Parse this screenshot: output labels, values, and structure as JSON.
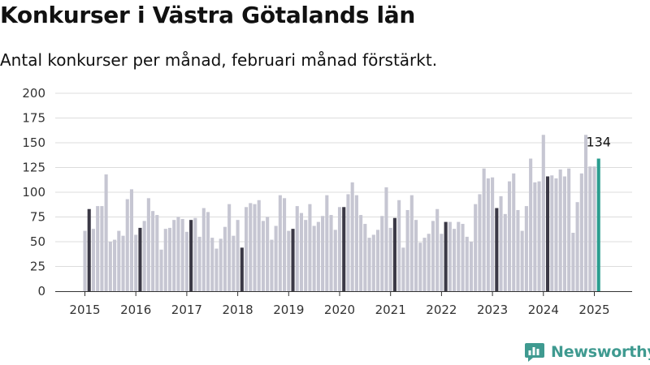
{
  "title": "Konkurser i Västra Götalands län",
  "subtitle": "Antal konkurser per månad, februari månad förstärkt.",
  "brand": {
    "name": "Newsworthy",
    "icon": "newsworthy-logo-icon",
    "color": "#3f9a90"
  },
  "chart_data": {
    "type": "bar",
    "title": "Konkurser i Västra Götalands län",
    "subtitle": "Antal konkurser per månad, februari månad förstärkt.",
    "xlabel": "",
    "ylabel": "",
    "ylim": [
      0,
      200
    ],
    "y_ticks": [
      0,
      25,
      50,
      75,
      100,
      125,
      150,
      175,
      200
    ],
    "x_tick_labels": [
      "2015",
      "2016",
      "2017",
      "2018",
      "2019",
      "2020",
      "2021",
      "2022",
      "2023",
      "2024",
      "2025"
    ],
    "grid": "horizontal",
    "start": "2015-01",
    "end": "2025-02",
    "highlight": "February of each year",
    "annotation": {
      "month": "2025-02",
      "label": "134"
    },
    "colors": {
      "default": "#c6c6d2",
      "february": "#3b3946",
      "latest": "#2a9d8f"
    },
    "values": [
      61,
      83,
      63,
      86,
      86,
      118,
      50,
      52,
      61,
      56,
      93,
      103,
      57,
      64,
      71,
      94,
      81,
      77,
      42,
      63,
      64,
      72,
      75,
      73,
      60,
      72,
      74,
      55,
      84,
      80,
      54,
      43,
      53,
      65,
      88,
      56,
      72,
      44,
      85,
      89,
      88,
      92,
      71,
      75,
      52,
      66,
      97,
      94,
      61,
      63,
      86,
      79,
      72,
      88,
      66,
      70,
      76,
      97,
      77,
      62,
      85,
      85,
      98,
      110,
      97,
      77,
      68,
      54,
      57,
      62,
      76,
      105,
      64,
      74,
      92,
      44,
      82,
      97,
      72,
      49,
      54,
      58,
      71,
      83,
      58,
      70,
      70,
      63,
      70,
      68,
      55,
      50,
      88,
      98,
      124,
      114,
      115,
      84,
      96,
      78,
      111,
      119,
      82,
      61,
      86,
      134,
      110,
      111,
      158,
      116,
      117,
      114,
      123,
      116,
      124,
      59,
      90,
      119,
      158,
      126,
      126,
      134
    ]
  }
}
